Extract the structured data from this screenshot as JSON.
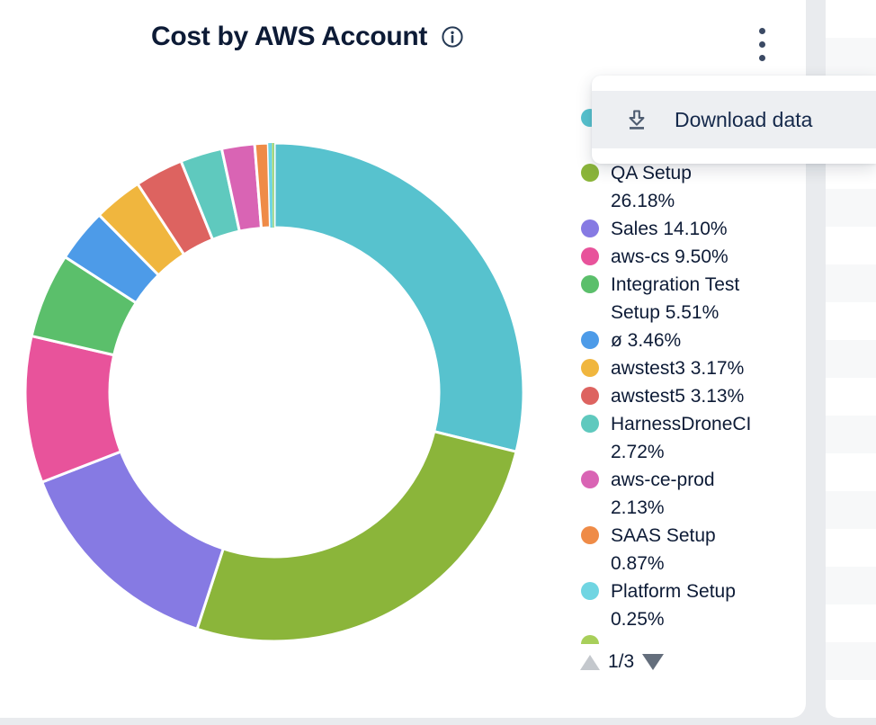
{
  "header": {
    "title": "Cost by AWS Account",
    "info_icon": "info-circle-icon",
    "menu_icon": "kebab-menu-icon"
  },
  "context_menu": {
    "item": {
      "icon": "download-icon",
      "label": "Download data"
    }
  },
  "chart_data": {
    "type": "donut",
    "title": "Cost by AWS Account",
    "unit": "percent",
    "legend_position": "right",
    "hole_ratio": 0.66,
    "segments": [
      {
        "label": "",
        "value": 28.84,
        "color": "#57C2CE",
        "label_hidden_by_menu": true
      },
      {
        "label": "QA Setup",
        "value": 26.18,
        "color": "#8BB53A"
      },
      {
        "label": "Sales",
        "value": 14.1,
        "color": "#867AE3"
      },
      {
        "label": "aws-cs",
        "value": 9.5,
        "color": "#E8539B"
      },
      {
        "label": "Integration Test Setup",
        "value": 5.51,
        "color": "#5BBF6B"
      },
      {
        "label": "ø",
        "value": 3.46,
        "color": "#4D9BE8"
      },
      {
        "label": "awstest3",
        "value": 3.17,
        "color": "#F0B63E"
      },
      {
        "label": "awstest5",
        "value": 3.13,
        "color": "#DD6360"
      },
      {
        "label": "HarnessDroneCI",
        "value": 2.72,
        "color": "#5FC9BE"
      },
      {
        "label": "aws-ce-prod",
        "value": 2.13,
        "color": "#D964B4"
      },
      {
        "label": "SAAS Setup",
        "value": 0.87,
        "color": "#EF8B47"
      },
      {
        "label": "Platform Setup",
        "value": 0.25,
        "color": "#70D5E2"
      },
      {
        "label": "",
        "value": 0.08,
        "color": "#C6DC5E"
      },
      {
        "label": "",
        "value": 0.06,
        "color": "#7FD3A8"
      }
    ]
  },
  "legend": {
    "items": [
      {
        "lines": [],
        "color": "#57C2CE"
      },
      {
        "lines": [
          "QA Setup",
          "26.18%"
        ],
        "color": "#8BB53A"
      },
      {
        "lines": [
          "Sales 14.10%"
        ],
        "color": "#867AE3"
      },
      {
        "lines": [
          "aws-cs 9.50%"
        ],
        "color": "#E8539B"
      },
      {
        "lines": [
          "Integration Test",
          "Setup 5.51%"
        ],
        "color": "#5BBF6B"
      },
      {
        "lines": [
          "ø 3.46%"
        ],
        "color": "#4D9BE8"
      },
      {
        "lines": [
          "awstest3 3.17%"
        ],
        "color": "#F0B63E"
      },
      {
        "lines": [
          "awstest5 3.13%"
        ],
        "color": "#DD6360"
      },
      {
        "lines": [
          "HarnessDroneCI",
          "2.72%"
        ],
        "color": "#5FC9BE"
      },
      {
        "lines": [
          "aws-ce-prod",
          "2.13%"
        ],
        "color": "#D964B4"
      },
      {
        "lines": [
          "SAAS Setup",
          "0.87%"
        ],
        "color": "#EF8B47"
      },
      {
        "lines": [
          "Platform Setup",
          "0.25%"
        ],
        "color": "#70D5E2"
      }
    ],
    "next_page_peek_color": "#A8CF5A",
    "pagination": {
      "label": "1/3",
      "up_enabled": false,
      "down_enabled": true
    }
  },
  "colors": {
    "page_background": "#e9ebee",
    "card_background": "#ffffff",
    "text": "#0d1b36",
    "menu_item_background": "#edeff2"
  }
}
